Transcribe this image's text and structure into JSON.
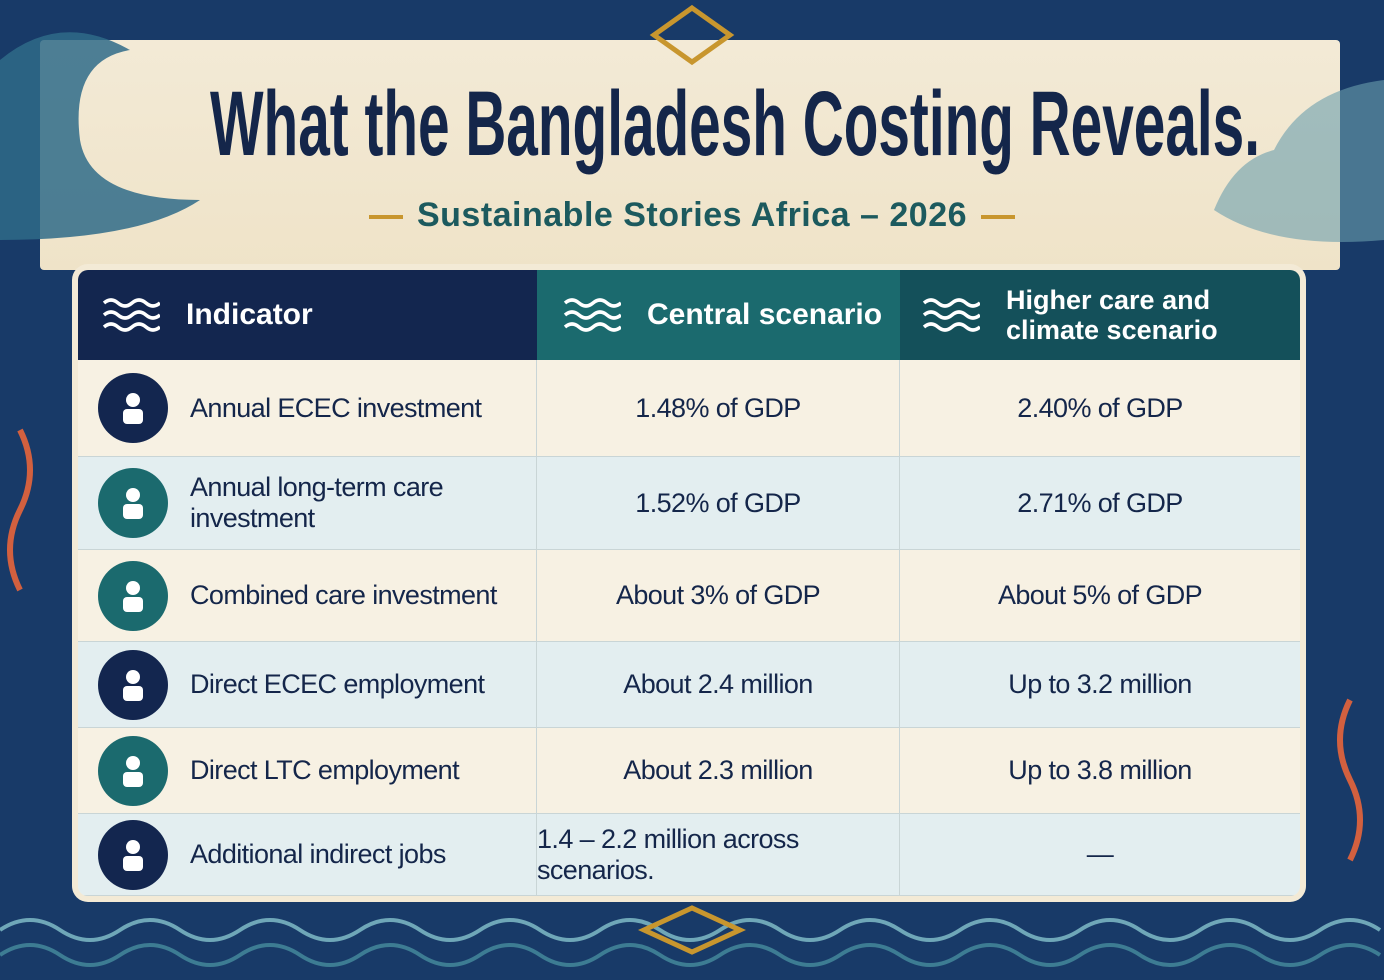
{
  "header": {
    "title": "What the Bangladesh Costing Reveals.",
    "subtitle": "Sustainable Stories Africa – 2026"
  },
  "table": {
    "columns": [
      "Indicator",
      "Central scenario",
      "Higher care and climate scenario"
    ],
    "rows": [
      [
        "Annual ECEC investment",
        "1.48% of GDP",
        "2.40% of GDP"
      ],
      [
        "Annual long-term care investment",
        "1.52% of GDP",
        "2.71% of GDP"
      ],
      [
        "Combined care investment",
        "About 3% of GDP",
        "About 5% of GDP"
      ],
      [
        "Direct ECEC employment",
        "About 2.4 million",
        "Up to 3.2 million"
      ],
      [
        "Direct LTC employment",
        "About 2.3 million",
        "Up to 3.8 million"
      ],
      [
        "Additional indirect jobs",
        "1.4 – 2.2 million across scenarios.",
        "—"
      ]
    ]
  }
}
